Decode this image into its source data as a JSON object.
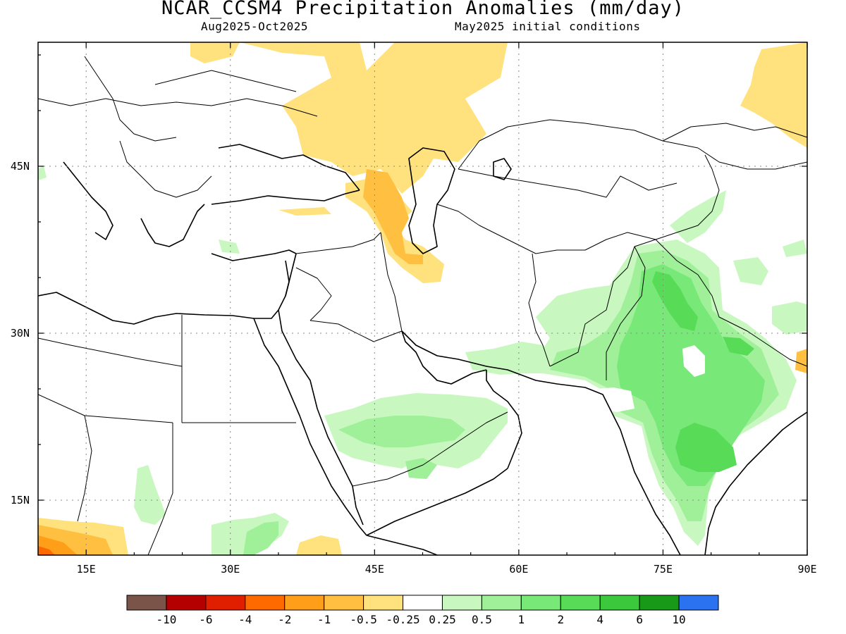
{
  "header": {
    "title": "NCAR_CCSM4 Precipitation Anomalies (mm/day)",
    "period": "Aug2025-Oct2025",
    "init": "May2025 initial conditions"
  },
  "map": {
    "region": {
      "lon_min": 10,
      "lon_max": 90,
      "lat_min": 10,
      "lat_max": 56
    },
    "lon_ticks": [
      {
        "v": 15,
        "label": "15E"
      },
      {
        "v": 30,
        "label": "30E"
      },
      {
        "v": 45,
        "label": "45E"
      },
      {
        "v": 60,
        "label": "60E"
      },
      {
        "v": 75,
        "label": "75E"
      },
      {
        "v": 90,
        "label": "90E"
      }
    ],
    "lat_ticks": [
      {
        "v": 15,
        "label": "15N"
      },
      {
        "v": 30,
        "label": "30N"
      },
      {
        "v": 45,
        "label": "45N"
      }
    ]
  },
  "colorbar": {
    "colors": [
      "#7a5448",
      "#b40000",
      "#e01e00",
      "#ff6a00",
      "#ff9f19",
      "#ffbf40",
      "#ffe27d",
      "#ffffff",
      "#c8f8c0",
      "#a0f09a",
      "#78e878",
      "#58dc58",
      "#3cc83c",
      "#189a18",
      "#2b72f0"
    ],
    "labels": [
      "-10",
      "-6",
      "-4",
      "-2",
      "-1",
      "-0.5",
      "-0.25",
      "0.25",
      "0.5",
      "1",
      "2",
      "4",
      "6",
      "10"
    ]
  },
  "chart_data": {
    "type": "heatmap",
    "title": "NCAR_CCSM4 Precipitation Anomalies (mm/day)",
    "subtitle": [
      "Aug2025-Oct2025",
      "May2025 initial conditions"
    ],
    "x_range_lon": [
      10,
      90
    ],
    "y_range_lat": [
      10,
      56
    ],
    "grid": true,
    "regions": [
      {
        "desc": "India / Pakistan / Nepal wet anomaly",
        "lon": [
          66,
          82
        ],
        "lat": [
          13,
          38
        ],
        "anomaly_mm_day": [
          0.5,
          4
        ]
      },
      {
        "desc": "Central India core",
        "lon": [
          75,
          79
        ],
        "lat": [
          18,
          22
        ],
        "anomaly_mm_day": [
          2,
          4
        ]
      },
      {
        "desc": "Northern Pakistan / Kashmir",
        "lon": [
          72,
          76
        ],
        "lat": [
          31,
          36
        ],
        "anomaly_mm_day": [
          1,
          4
        ]
      },
      {
        "desc": "Tarim / western China wet",
        "lon": [
          79,
          90
        ],
        "lat": [
          30,
          37
        ],
        "anomaly_mm_day": [
          0.25,
          0.5
        ]
      },
      {
        "desc": "Arabian Peninsula south wet",
        "lon": [
          40,
          56
        ],
        "lat": [
          18,
          23
        ],
        "anomaly_mm_day": [
          0.25,
          1
        ]
      },
      {
        "desc": "Oman / UAE / Iran coast wet",
        "lon": [
          53,
          64
        ],
        "lat": [
          24,
          28
        ],
        "anomaly_mm_day": [
          0.25,
          0.5
        ]
      },
      {
        "desc": "Ethiopia / Eritrea wet",
        "lon": [
          33,
          39
        ],
        "lat": [
          10,
          15
        ],
        "anomaly_mm_day": [
          0.25,
          1
        ]
      },
      {
        "desc": "Sudan wet",
        "lon": [
          21,
          24
        ],
        "lat": [
          13,
          17
        ],
        "anomaly_mm_day": [
          0.25,
          0.5
        ]
      },
      {
        "desc": "Caucasus / Georgia / Armenia dry",
        "lon": [
          42,
          48
        ],
        "lat": [
          36,
          44
        ],
        "anomaly_mm_day": [
          -1,
          -0.25
        ]
      },
      {
        "desc": "Russian plain / Volga dry",
        "lon": [
          36,
          58
        ],
        "lat": [
          44,
          56
        ],
        "anomaly_mm_day": [
          -0.5,
          -0.25
        ]
      },
      {
        "desc": "Northern Mongolia / Siberia dry",
        "lon": [
          84,
          90
        ],
        "lat": [
          48,
          55
        ],
        "anomaly_mm_day": [
          -0.5,
          -0.25
        ]
      },
      {
        "desc": "Sahel dry",
        "lon": [
          10,
          19
        ],
        "lat": [
          10,
          13
        ],
        "anomaly_mm_day": [
          -4,
          -0.25
        ]
      },
      {
        "desc": "Somalia / Yemen coast dry",
        "lon": [
          38,
          42
        ],
        "lat": [
          10,
          12
        ],
        "anomaly_mm_day": [
          -0.5,
          -0.25
        ]
      }
    ]
  }
}
